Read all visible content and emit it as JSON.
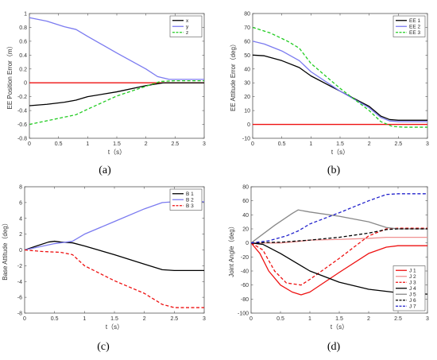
{
  "chart_data": [
    {
      "type": "line",
      "panel_label": "(a)",
      "xlabel": "t（s）",
      "ylabel": "EE Position Error（m）",
      "xlim": [
        0,
        3
      ],
      "ylim": [
        -0.8,
        1
      ],
      "xticks": [
        0,
        0.5,
        1,
        1.5,
        2,
        2.5,
        3
      ],
      "yticks": [
        -0.8,
        -0.6,
        -0.4,
        -0.2,
        0,
        0.2,
        0.4,
        0.6,
        0.8,
        1
      ],
      "xtick_labels": [
        "0",
        "0.5",
        "1",
        "1.5",
        "2",
        "2.5",
        "3"
      ],
      "ytick_labels": [
        "-0.8",
        "-0.6",
        "-0.4",
        "-0.2",
        "0",
        "0.2",
        "0.4",
        "0.6",
        "0.8",
        "1"
      ],
      "legend_position": "top-right",
      "grid": false,
      "series": [
        {
          "name": "x",
          "color": "#000000",
          "dash": "solid",
          "points": [
            [
              0,
              -0.33
            ],
            [
              0.3,
              -0.31
            ],
            [
              0.6,
              -0.28
            ],
            [
              0.8,
              -0.25
            ],
            [
              1.0,
              -0.2
            ],
            [
              1.5,
              -0.13
            ],
            [
              2.0,
              -0.04
            ],
            [
              2.3,
              0.0
            ],
            [
              2.5,
              0.0
            ],
            [
              3.0,
              0.0
            ]
          ]
        },
        {
          "name": "y",
          "color": "#7b7bf0",
          "dash": "solid",
          "points": [
            [
              0,
              0.94
            ],
            [
              0.3,
              0.89
            ],
            [
              0.6,
              0.81
            ],
            [
              0.8,
              0.77
            ],
            [
              1.0,
              0.67
            ],
            [
              1.5,
              0.43
            ],
            [
              2.0,
              0.2
            ],
            [
              2.2,
              0.09
            ],
            [
              2.4,
              0.05
            ],
            [
              3.0,
              0.05
            ]
          ]
        },
        {
          "name": "z",
          "color": "#22cc22",
          "dash": "dashed",
          "points": [
            [
              0,
              -0.6
            ],
            [
              0.4,
              -0.53
            ],
            [
              0.8,
              -0.46
            ],
            [
              1.0,
              -0.38
            ],
            [
              1.5,
              -0.19
            ],
            [
              2.0,
              -0.05
            ],
            [
              2.25,
              0.02
            ],
            [
              2.5,
              0.03
            ],
            [
              3.0,
              0.03
            ]
          ]
        }
      ],
      "reference_lines": [
        {
          "y": 0,
          "color": "#ee1111"
        }
      ]
    },
    {
      "type": "line",
      "panel_label": "(b)",
      "xlabel": "t（s）",
      "ylabel": "EE Attitude Error（deg）",
      "xlim": [
        0,
        3
      ],
      "ylim": [
        -10,
        80
      ],
      "xticks": [
        0,
        0.5,
        1,
        1.5,
        2,
        2.5,
        3
      ],
      "yticks": [
        -10,
        0,
        10,
        20,
        30,
        40,
        50,
        60,
        70,
        80
      ],
      "xtick_labels": [
        "0",
        "0.5",
        "1",
        "1.5",
        "2",
        "2.5",
        "3"
      ],
      "ytick_labels": [
        "-10",
        "0",
        "10",
        "20",
        "30",
        "40",
        "50",
        "60",
        "70",
        "80"
      ],
      "legend_position": "top-right",
      "grid": false,
      "series": [
        {
          "name": "EE 1",
          "color": "#000000",
          "dash": "solid",
          "points": [
            [
              0,
              50
            ],
            [
              0.2,
              49.5
            ],
            [
              0.5,
              46
            ],
            [
              0.8,
              41
            ],
            [
              1.0,
              35
            ],
            [
              1.5,
              24
            ],
            [
              2.0,
              13
            ],
            [
              2.2,
              6
            ],
            [
              2.35,
              3.5
            ],
            [
              2.5,
              3
            ],
            [
              3.0,
              3
            ]
          ]
        },
        {
          "name": "EE 2",
          "color": "#7b7bf0",
          "dash": "solid",
          "points": [
            [
              0,
              60
            ],
            [
              0.2,
              58
            ],
            [
              0.5,
              53
            ],
            [
              0.8,
              46
            ],
            [
              1.0,
              38
            ],
            [
              1.5,
              24
            ],
            [
              2.0,
              12
            ],
            [
              2.2,
              5
            ],
            [
              2.35,
              2.5
            ],
            [
              2.5,
              2
            ],
            [
              3.0,
              2
            ]
          ]
        },
        {
          "name": "EE 3",
          "color": "#22cc22",
          "dash": "dashed",
          "points": [
            [
              0,
              70
            ],
            [
              0.3,
              66
            ],
            [
              0.6,
              60
            ],
            [
              0.8,
              55
            ],
            [
              1.0,
              44
            ],
            [
              1.5,
              26
            ],
            [
              2.0,
              10
            ],
            [
              2.2,
              2
            ],
            [
              2.4,
              -1.5
            ],
            [
              2.6,
              -2
            ],
            [
              3.0,
              -2
            ]
          ]
        }
      ],
      "reference_lines": [
        {
          "y": 0,
          "color": "#ee1111"
        }
      ]
    },
    {
      "type": "line",
      "panel_label": "(c)",
      "xlabel": "t（s）",
      "ylabel": "Base Attitude（deg）",
      "xlim": [
        0,
        3
      ],
      "ylim": [
        -8,
        8
      ],
      "xticks": [
        0,
        0.5,
        1,
        1.5,
        2,
        2.5,
        3
      ],
      "yticks": [
        -8,
        -6,
        -4,
        -2,
        0,
        2,
        4,
        6,
        8
      ],
      "xtick_labels": [
        "0",
        "0.5",
        "1",
        "1.5",
        "2",
        "2.5",
        "3"
      ],
      "ytick_labels": [
        "-8",
        "-6",
        "-4",
        "-2",
        "0",
        "2",
        "4",
        "6",
        "8"
      ],
      "legend_position": "top-right",
      "grid": false,
      "series": [
        {
          "name": "B 1",
          "color": "#000000",
          "dash": "solid",
          "points": [
            [
              0,
              0
            ],
            [
              0.2,
              0.5
            ],
            [
              0.4,
              1.0
            ],
            [
              0.5,
              1.1
            ],
            [
              0.6,
              1.0
            ],
            [
              0.8,
              0.9
            ],
            [
              1.0,
              0.5
            ],
            [
              1.5,
              -0.6
            ],
            [
              2.0,
              -1.8
            ],
            [
              2.3,
              -2.5
            ],
            [
              2.5,
              -2.6
            ],
            [
              3.0,
              -2.6
            ]
          ]
        },
        {
          "name": "B 2",
          "color": "#7b7bf0",
          "dash": "solid",
          "points": [
            [
              0,
              0
            ],
            [
              0.5,
              0.8
            ],
            [
              0.8,
              1.1
            ],
            [
              1.0,
              2.0
            ],
            [
              1.5,
              3.6
            ],
            [
              2.0,
              5.2
            ],
            [
              2.3,
              6.0
            ],
            [
              2.5,
              6.1
            ],
            [
              3.0,
              6.1
            ]
          ]
        },
        {
          "name": "B 3",
          "color": "#ee1111",
          "dash": "dashed",
          "points": [
            [
              0,
              0
            ],
            [
              0.3,
              -0.2
            ],
            [
              0.6,
              -0.3
            ],
            [
              0.8,
              -0.6
            ],
            [
              1.0,
              -2.0
            ],
            [
              1.5,
              -3.9
            ],
            [
              2.0,
              -5.5
            ],
            [
              2.3,
              -6.9
            ],
            [
              2.5,
              -7.3
            ],
            [
              3.0,
              -7.3
            ]
          ]
        }
      ],
      "reference_lines": []
    },
    {
      "type": "line",
      "panel_label": "(d)",
      "xlabel": "t（s）",
      "ylabel": "Joint Angle（deg）",
      "xlim": [
        0,
        3
      ],
      "ylim": [
        -100,
        80
      ],
      "xticks": [
        0,
        0.5,
        1,
        1.5,
        2,
        2.5,
        3
      ],
      "yticks": [
        -100,
        -80,
        -60,
        -40,
        -20,
        0,
        20,
        40,
        60,
        80
      ],
      "xtick_labels": [
        "0",
        "0.5",
        "1",
        "1.5",
        "2",
        "2.5",
        "3"
      ],
      "ytick_labels": [
        "-100",
        "-80",
        "-60",
        "-40",
        "-20",
        "0",
        "20",
        "40",
        "60",
        "80"
      ],
      "legend_position": "bottom-right",
      "grid": false,
      "series": [
        {
          "name": "J 1",
          "color": "#ee1111",
          "dash": "solid",
          "points": [
            [
              0,
              0
            ],
            [
              0.15,
              -15
            ],
            [
              0.3,
              -40
            ],
            [
              0.5,
              -60
            ],
            [
              0.7,
              -70
            ],
            [
              0.85,
              -74
            ],
            [
              1.0,
              -70
            ],
            [
              1.5,
              -42
            ],
            [
              2.0,
              -15
            ],
            [
              2.3,
              -6
            ],
            [
              2.5,
              -4
            ],
            [
              3.0,
              -4
            ]
          ]
        },
        {
          "name": "J 2",
          "color": "#f09090",
          "dash": "solid",
          "points": [
            [
              0,
              0
            ],
            [
              0.5,
              0
            ],
            [
              0.8,
              2
            ],
            [
              1.0,
              4
            ],
            [
              1.5,
              5
            ],
            [
              2.0,
              6.5
            ],
            [
              2.3,
              8
            ],
            [
              2.5,
              8
            ],
            [
              3.0,
              8
            ]
          ]
        },
        {
          "name": "J 3",
          "color": "#ee1111",
          "dash": "dashed",
          "points": [
            [
              0,
              0
            ],
            [
              0.2,
              -10
            ],
            [
              0.4,
              -40
            ],
            [
              0.6,
              -57
            ],
            [
              0.85,
              -60
            ],
            [
              1.0,
              -52
            ],
            [
              1.5,
              -22
            ],
            [
              2.0,
              10
            ],
            [
              2.3,
              20
            ],
            [
              2.5,
              21
            ],
            [
              3.0,
              21
            ]
          ]
        },
        {
          "name": "J 4",
          "color": "#000000",
          "dash": "solid",
          "points": [
            [
              0,
              0
            ],
            [
              0.2,
              -2
            ],
            [
              0.5,
              -15
            ],
            [
              0.8,
              -30
            ],
            [
              1.0,
              -40
            ],
            [
              1.5,
              -56
            ],
            [
              2.0,
              -66
            ],
            [
              2.5,
              -71
            ],
            [
              3.0,
              -73
            ]
          ]
        },
        {
          "name": "J 5",
          "color": "#888888",
          "dash": "solid",
          "points": [
            [
              0,
              0
            ],
            [
              0.4,
              25
            ],
            [
              0.7,
              42
            ],
            [
              0.8,
              47
            ],
            [
              1.0,
              44
            ],
            [
              1.5,
              38
            ],
            [
              2.0,
              30
            ],
            [
              2.3,
              22
            ],
            [
              2.5,
              20
            ],
            [
              3.0,
              20
            ]
          ]
        },
        {
          "name": "J 6",
          "color": "#000000",
          "dash": "dashed",
          "points": [
            [
              0,
              0
            ],
            [
              0.5,
              1
            ],
            [
              1.0,
              4
            ],
            [
              1.5,
              8
            ],
            [
              2.0,
              14
            ],
            [
              2.3,
              19
            ],
            [
              2.5,
              20
            ],
            [
              3.0,
              20
            ]
          ]
        },
        {
          "name": "J 7",
          "color": "#2222cc",
          "dash": "dashed",
          "points": [
            [
              0,
              0
            ],
            [
              0.3,
              3
            ],
            [
              0.6,
              10
            ],
            [
              0.8,
              17
            ],
            [
              1.0,
              27
            ],
            [
              1.5,
              43
            ],
            [
              2.0,
              60
            ],
            [
              2.3,
              69
            ],
            [
              2.5,
              70
            ],
            [
              3.0,
              70
            ]
          ]
        }
      ],
      "reference_lines": []
    }
  ]
}
